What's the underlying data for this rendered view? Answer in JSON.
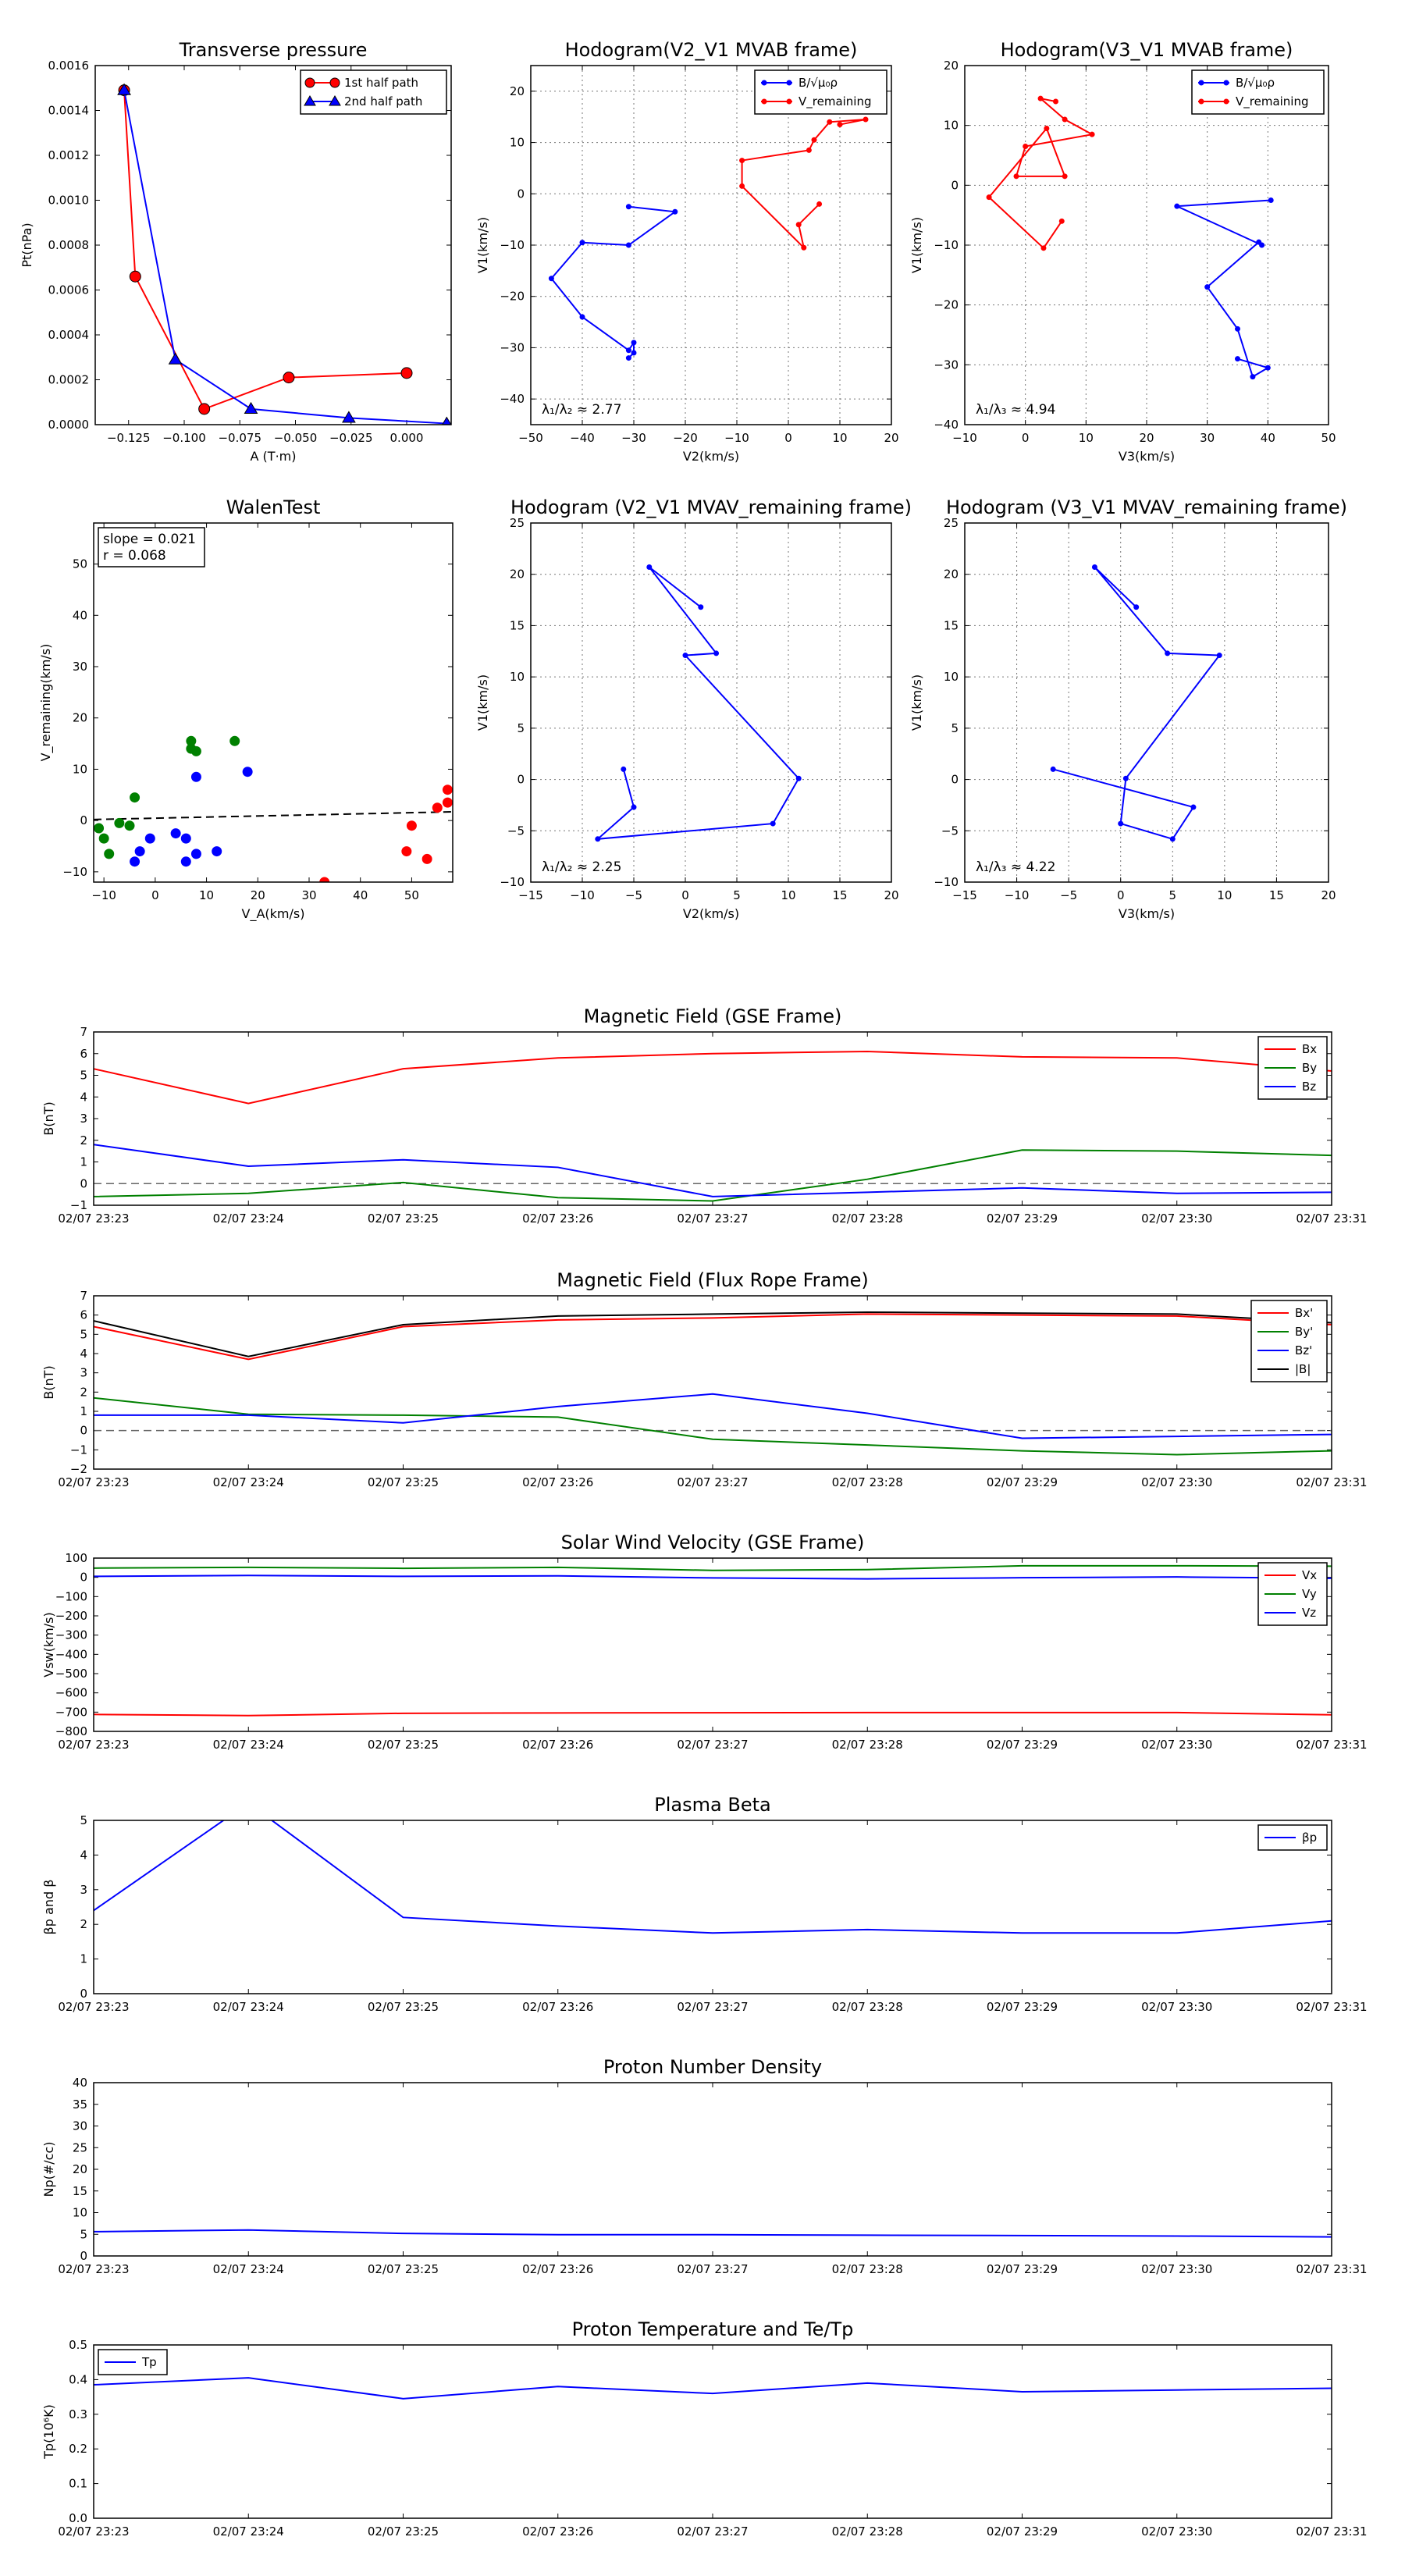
{
  "chart_data": [
    {
      "type": "line",
      "title": "Transverse pressure",
      "xlabel": "A (T·m)",
      "ylabel": "Pt(nPa)",
      "xlim": [
        -0.14,
        0.02
      ],
      "ylim": [
        0,
        0.0016
      ],
      "xticks": [
        -0.125,
        -0.1,
        -0.075,
        -0.05,
        -0.025,
        0.0
      ],
      "xtick_labels": [
        "−0.125",
        "−0.100",
        "−0.075",
        "−0.050",
        "−0.025",
        "0.000"
      ],
      "yticks": [
        0,
        0.0002,
        0.0004,
        0.0006,
        0.0008,
        0.001,
        0.0012,
        0.0014,
        0.0016
      ],
      "ytick_labels": [
        "0.0000",
        "0.0002",
        "0.0004",
        "0.0006",
        "0.0008",
        "0.0010",
        "0.0012",
        "0.0014",
        "0.0016"
      ],
      "grid": false,
      "legend": "top-right",
      "series": [
        {
          "name": "1st half path",
          "color": "#ff0000",
          "marker": "circle",
          "x": [
            -0.127,
            -0.122,
            -0.091,
            -0.053,
            0.0
          ],
          "y": [
            0.00149,
            0.00066,
            7e-05,
            0.00021,
            0.00023
          ]
        },
        {
          "name": "2nd half path",
          "color": "#0000ff",
          "marker": "triangle",
          "x": [
            -0.127,
            -0.104,
            -0.07,
            -0.026,
            0.018
          ],
          "y": [
            0.00149,
            0.00029,
            7e-05,
            3e-05,
            5e-06
          ]
        }
      ]
    },
    {
      "type": "line",
      "title": "Hodogram(V2_V1 MVAB frame)",
      "xlabel": "V2(km/s)",
      "ylabel": "V1(km/s)",
      "xlim": [
        -50,
        20
      ],
      "ylim": [
        -45,
        25
      ],
      "xticks": [
        -50,
        -40,
        -30,
        -20,
        -10,
        0,
        10,
        20
      ],
      "yticks": [
        -40,
        -30,
        -20,
        -10,
        0,
        10,
        20
      ],
      "grid": true,
      "legend": "top-right",
      "annotation": "λ₁/λ₂ ≈ 2.77",
      "series": [
        {
          "name": "B/√μ₀ρ",
          "color": "#0000ff",
          "x": [
            -31,
            -22,
            -31,
            -40,
            -46,
            -40,
            -31,
            -30,
            -30,
            -31
          ],
          "y": [
            -2.5,
            -3.5,
            -10,
            -9.5,
            -16.5,
            -24,
            -30.5,
            -29,
            -31,
            -32
          ]
        },
        {
          "name": "V_remaining",
          "color": "#ff0000",
          "x": [
            6,
            2,
            3,
            -9,
            -9,
            4,
            5,
            8,
            15,
            10
          ],
          "y": [
            -2,
            -6,
            -10.5,
            1.5,
            6.5,
            8.5,
            10.5,
            14,
            14.5,
            13.5
          ]
        }
      ]
    },
    {
      "type": "line",
      "title": "Hodogram(V3_V1 MVAB frame)",
      "xlabel": "V3(km/s)",
      "ylabel": "V1(km/s)",
      "xlim": [
        -10,
        50
      ],
      "ylim": [
        -40,
        20
      ],
      "xticks": [
        -10,
        0,
        10,
        20,
        30,
        40,
        50
      ],
      "yticks": [
        -40,
        -30,
        -20,
        -10,
        0,
        10,
        20
      ],
      "grid": true,
      "legend": "top-right",
      "annotation": "λ₁/λ₃ ≈ 4.94",
      "series": [
        {
          "name": "B/√μ₀ρ",
          "color": "#0000ff",
          "x": [
            40.5,
            25,
            39,
            38.5,
            30,
            35,
            37.5,
            40,
            35
          ],
          "y": [
            -2.5,
            -3.5,
            -10,
            -9.5,
            -17,
            -24,
            -32,
            -30.5,
            -29
          ]
        },
        {
          "name": "V_remaining",
          "color": "#ff0000",
          "x": [
            6,
            3,
            -6,
            3.5,
            6.5,
            -1.5,
            0,
            11,
            6.5,
            2.5,
            5
          ],
          "y": [
            -6,
            -10.5,
            -2,
            9.5,
            1.5,
            1.5,
            6.5,
            8.5,
            11,
            14.5,
            14
          ]
        }
      ]
    },
    {
      "type": "scatter",
      "title": "WalenTest",
      "xlabel": "V_A(km/s)",
      "ylabel": "V_remaining(km/s)",
      "xlim": [
        -12,
        58
      ],
      "ylim": [
        -12,
        58
      ],
      "xticks": [
        -10,
        0,
        10,
        20,
        30,
        40,
        50
      ],
      "yticks": [
        -10,
        0,
        10,
        20,
        30,
        40,
        50
      ],
      "grid": false,
      "annotation_lines": [
        "slope = 0.021",
        "r = 0.068"
      ],
      "fit_line": {
        "x": [
          -12,
          58
        ],
        "y": [
          0.2,
          1.7
        ]
      },
      "series": [
        {
          "name": "",
          "color": "#008000",
          "x": [
            -11,
            -10,
            -9,
            -4,
            -7,
            -5,
            7,
            7,
            8,
            15.5
          ],
          "y": [
            -1.5,
            -3.5,
            -6.5,
            4.5,
            -0.5,
            -1,
            15.5,
            14,
            13.5,
            15.5
          ]
        },
        {
          "name": "",
          "color": "#0000ff",
          "x": [
            -4,
            -3,
            -1,
            4,
            6,
            8,
            12,
            6,
            8,
            18
          ],
          "y": [
            -8,
            -6,
            -3.5,
            -2.5,
            -3.5,
            -6.5,
            -6,
            -8,
            8.5,
            9.5
          ]
        },
        {
          "name": "",
          "color": "#ff0000",
          "x": [
            49,
            50,
            53,
            55,
            57,
            57,
            33
          ],
          "y": [
            -6,
            -1,
            -7.5,
            2.5,
            3.5,
            6,
            -12
          ]
        }
      ]
    },
    {
      "type": "line",
      "title": "Hodogram (V2_V1 MVAV_remaining frame)",
      "xlabel": "V2(km/s)",
      "ylabel": "V1(km/s)",
      "xlim": [
        -15,
        20
      ],
      "ylim": [
        -10,
        25
      ],
      "xticks": [
        -15,
        -10,
        -5,
        0,
        5,
        10,
        15,
        20
      ],
      "yticks": [
        -10,
        -5,
        0,
        5,
        10,
        15,
        20,
        25
      ],
      "grid": true,
      "annotation": "λ₁/λ₂ ≈ 2.25",
      "series": [
        {
          "name": "",
          "color": "#0000ff",
          "x": [
            1.5,
            -3.5,
            3,
            0,
            11,
            8.5,
            -8.5,
            -5,
            -6
          ],
          "y": [
            16.8,
            20.7,
            12.3,
            12.1,
            0.1,
            -4.3,
            -5.8,
            -2.7,
            1.0
          ]
        }
      ]
    },
    {
      "type": "line",
      "title": "Hodogram (V3_V1 MVAV_remaining frame)",
      "xlabel": "V3(km/s)",
      "ylabel": "V1(km/s)",
      "xlim": [
        -15,
        20
      ],
      "ylim": [
        -10,
        25
      ],
      "xticks": [
        -15,
        -10,
        -5,
        0,
        5,
        10,
        15,
        20
      ],
      "yticks": [
        -10,
        -5,
        0,
        5,
        10,
        15,
        20,
        25
      ],
      "grid": true,
      "annotation": "λ₁/λ₃ ≈ 4.22",
      "series": [
        {
          "name": "",
          "color": "#0000ff",
          "x": [
            1.5,
            -2.5,
            4.5,
            9.5,
            0.5,
            0,
            5,
            7,
            -6.5
          ],
          "y": [
            16.8,
            20.7,
            12.3,
            12.1,
            0.1,
            -4.3,
            -5.8,
            -2.7,
            1.0
          ]
        }
      ]
    },
    {
      "type": "line",
      "title": "Magnetic Field (GSE Frame)",
      "xlabel": "",
      "ylabel": "B(nT)",
      "categories": [
        "02/07 23:23",
        "02/07 23:24",
        "02/07 23:25",
        "02/07 23:26",
        "02/07 23:27",
        "02/07 23:28",
        "02/07 23:29",
        "02/07 23:30",
        "02/07 23:31"
      ],
      "ylim": [
        -1,
        7
      ],
      "yticks": [
        -1,
        0,
        1,
        2,
        3,
        4,
        5,
        6,
        7
      ],
      "grid": false,
      "legend": "top-right",
      "zero_line": true,
      "series": [
        {
          "name": "Bx",
          "color": "#ff0000",
          "values": [
            5.3,
            3.7,
            5.3,
            5.8,
            6.0,
            6.1,
            5.85,
            5.8,
            5.2
          ]
        },
        {
          "name": "By",
          "color": "#008000",
          "values": [
            -0.6,
            -0.45,
            0.05,
            -0.65,
            -0.8,
            0.2,
            1.55,
            1.5,
            1.3
          ]
        },
        {
          "name": "Bz",
          "color": "#0000ff",
          "values": [
            1.8,
            0.8,
            1.1,
            0.75,
            -0.6,
            -0.4,
            -0.2,
            -0.45,
            -0.4
          ]
        }
      ]
    },
    {
      "type": "line",
      "title": "Magnetic Field (Flux Rope Frame)",
      "xlabel": "",
      "ylabel": "B(nT)",
      "categories": [
        "02/07 23:23",
        "02/07 23:24",
        "02/07 23:25",
        "02/07 23:26",
        "02/07 23:27",
        "02/07 23:28",
        "02/07 23:29",
        "02/07 23:30",
        "02/07 23:31"
      ],
      "ylim": [
        -2,
        7
      ],
      "yticks": [
        -2,
        -1,
        0,
        1,
        2,
        3,
        4,
        5,
        6,
        7
      ],
      "grid": false,
      "legend": "top-right",
      "zero_line": true,
      "series": [
        {
          "name": "Bx'",
          "color": "#ff0000",
          "values": [
            5.4,
            3.7,
            5.4,
            5.75,
            5.85,
            6.05,
            6.0,
            5.95,
            5.5
          ]
        },
        {
          "name": "By'",
          "color": "#008000",
          "values": [
            1.7,
            0.85,
            0.8,
            0.7,
            -0.45,
            -0.75,
            -1.05,
            -1.25,
            -1.05
          ]
        },
        {
          "name": "Bz'",
          "color": "#0000ff",
          "values": [
            0.8,
            0.8,
            0.4,
            1.25,
            1.9,
            0.9,
            -0.4,
            -0.3,
            -0.2
          ]
        },
        {
          "name": "|B|",
          "color": "#000000",
          "values": [
            5.7,
            3.85,
            5.5,
            5.95,
            6.05,
            6.15,
            6.1,
            6.05,
            5.6
          ]
        }
      ]
    },
    {
      "type": "line",
      "title": "Solar Wind Velocity (GSE Frame)",
      "xlabel": "",
      "ylabel": "Vsw(km/s)",
      "categories": [
        "02/07 23:23",
        "02/07 23:24",
        "02/07 23:25",
        "02/07 23:26",
        "02/07 23:27",
        "02/07 23:28",
        "02/07 23:29",
        "02/07 23:30",
        "02/07 23:31"
      ],
      "ylim": [
        -800,
        100
      ],
      "yticks": [
        -800,
        -700,
        -600,
        -500,
        -400,
        -300,
        -200,
        -100,
        0,
        100
      ],
      "grid": false,
      "legend": "top-right",
      "series": [
        {
          "name": "Vx",
          "color": "#ff0000",
          "values": [
            -712,
            -718,
            -706,
            -704,
            -703,
            -702,
            -702,
            -702,
            -714
          ]
        },
        {
          "name": "Vy",
          "color": "#008000",
          "values": [
            48,
            52,
            47,
            52,
            36,
            40,
            60,
            60,
            58
          ]
        },
        {
          "name": "Vz",
          "color": "#0000ff",
          "values": [
            5,
            10,
            5,
            8,
            -3,
            -8,
            -2,
            2,
            -5
          ]
        }
      ]
    },
    {
      "type": "line",
      "title": "Plasma Beta",
      "xlabel": "",
      "ylabel": "βp and β",
      "categories": [
        "02/07 23:23",
        "02/07 23:24",
        "02/07 23:25",
        "02/07 23:26",
        "02/07 23:27",
        "02/07 23:28",
        "02/07 23:29",
        "02/07 23:30",
        "02/07 23:31"
      ],
      "ylim": [
        0,
        5
      ],
      "yticks": [
        0,
        1,
        2,
        3,
        4,
        5
      ],
      "grid": false,
      "legend": "top-right",
      "series": [
        {
          "name": "βp",
          "color": "#0000ff",
          "values": [
            2.4,
            5.5,
            2.2,
            1.95,
            1.75,
            1.85,
            1.75,
            1.75,
            2.1
          ]
        }
      ]
    },
    {
      "type": "line",
      "title": "Proton Number Density",
      "xlabel": "",
      "ylabel": "Np(#/cc)",
      "categories": [
        "02/07 23:23",
        "02/07 23:24",
        "02/07 23:25",
        "02/07 23:26",
        "02/07 23:27",
        "02/07 23:28",
        "02/07 23:29",
        "02/07 23:30",
        "02/07 23:31"
      ],
      "ylim": [
        0,
        40
      ],
      "yticks": [
        0,
        5,
        10,
        15,
        20,
        25,
        30,
        35,
        40
      ],
      "grid": false,
      "series": [
        {
          "name": "",
          "color": "#0000ff",
          "values": [
            5.6,
            6.0,
            5.2,
            4.9,
            4.9,
            4.8,
            4.7,
            4.6,
            4.4
          ]
        }
      ]
    },
    {
      "type": "line",
      "title": "Proton Temperature and Te/Tp",
      "xlabel": "",
      "ylabel": "Tp(10⁶K)",
      "categories": [
        "02/07 23:23",
        "02/07 23:24",
        "02/07 23:25",
        "02/07 23:26",
        "02/07 23:27",
        "02/07 23:28",
        "02/07 23:29",
        "02/07 23:30",
        "02/07 23:31"
      ],
      "ylim": [
        0,
        0.5
      ],
      "yticks": [
        0,
        0.1,
        0.2,
        0.3,
        0.4,
        0.5
      ],
      "ytick_labels": [
        "0.0",
        "0.1",
        "0.2",
        "0.3",
        "0.4",
        "0.5"
      ],
      "grid": false,
      "legend": "top-left",
      "series": [
        {
          "name": "Tp",
          "color": "#0000ff",
          "values": [
            0.385,
            0.405,
            0.345,
            0.38,
            0.36,
            0.39,
            0.365,
            0.37,
            0.375
          ]
        }
      ]
    }
  ]
}
